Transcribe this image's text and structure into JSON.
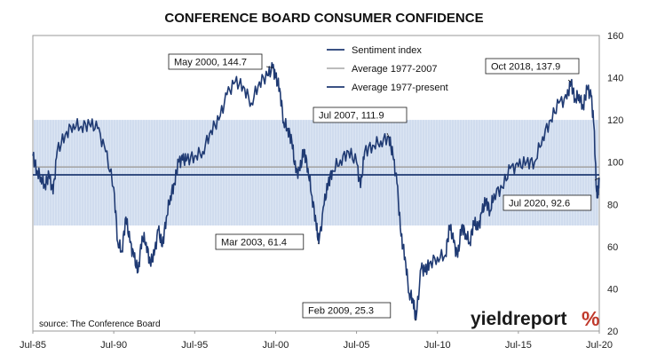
{
  "chart_data": {
    "type": "line",
    "title": "CONFERENCE BOARD CONSUMER CONFIDENCE",
    "source": "source: The Conference Board",
    "logo": {
      "text": "yieldreport",
      "symbol": "%"
    },
    "x_ticks": [
      "Jul-85",
      "Jul-90",
      "Jul-95",
      "Jul-00",
      "Jul-05",
      "Jul-10",
      "Jul-15",
      "Jul-20"
    ],
    "y_ticks": [
      20,
      40,
      60,
      80,
      100,
      120,
      140,
      160
    ],
    "xlim": [
      1985.5,
      2020.5
    ],
    "ylim": [
      20,
      160
    ],
    "grid": false,
    "legend_position": "top-center",
    "shaded_band": [
      70,
      120
    ],
    "colors": {
      "sentiment": "#1f3a73",
      "avg_1977_2007": "#a6a6a6",
      "avg_1977_present": "#1f3a73",
      "band": "#dbe5f3"
    },
    "series": [
      {
        "name": "Sentiment index",
        "x": [
          1985.5,
          1985.75,
          1986.0,
          1986.25,
          1986.5,
          1986.75,
          1987.0,
          1987.5,
          1988.0,
          1988.5,
          1989.0,
          1989.5,
          1990.0,
          1990.5,
          1990.75,
          1991.0,
          1991.25,
          1991.5,
          1991.75,
          1992.0,
          1992.25,
          1992.5,
          1992.75,
          1993.0,
          1993.25,
          1993.5,
          1993.75,
          1994.0,
          1994.25,
          1994.5,
          1994.75,
          1995.0,
          1995.5,
          1996.0,
          1996.5,
          1997.0,
          1997.5,
          1998.0,
          1998.5,
          1999.0,
          1999.5,
          2000.0,
          2000.33,
          2000.5,
          2000.75,
          2001.0,
          2001.25,
          2001.5,
          2001.75,
          2002.0,
          2002.25,
          2002.5,
          2002.75,
          2003.0,
          2003.17,
          2003.5,
          2003.75,
          2004.0,
          2004.5,
          2005.0,
          2005.5,
          2005.75,
          2006.0,
          2006.5,
          2007.0,
          2007.5,
          2007.75,
          2008.0,
          2008.25,
          2008.5,
          2008.75,
          2009.0,
          2009.17,
          2009.5,
          2009.75,
          2010.0,
          2010.5,
          2011.0,
          2011.25,
          2011.5,
          2011.75,
          2012.0,
          2012.25,
          2012.5,
          2012.75,
          2013.0,
          2013.25,
          2013.5,
          2013.75,
          2014.0,
          2014.5,
          2015.0,
          2015.5,
          2016.0,
          2016.5,
          2017.0,
          2017.5,
          2018.0,
          2018.5,
          2018.75,
          2019.0,
          2019.25,
          2019.5,
          2019.75,
          2020.0,
          2020.17,
          2020.33,
          2020.42,
          2020.5
        ],
        "values": [
          103,
          96,
          93,
          89,
          94,
          85,
          105,
          113,
          118,
          117,
          118,
          116,
          105,
          88,
          62,
          58,
          74,
          62,
          55,
          48,
          65,
          62,
          52,
          56,
          68,
          60,
          74,
          84,
          90,
          100,
          101,
          101,
          103,
          105,
          115,
          120,
          132,
          138,
          136,
          128,
          138,
          141,
          144.7,
          140,
          135,
          119,
          116,
          110,
          95,
          96,
          106,
          97,
          84,
          71,
          61.4,
          80,
          90,
          96,
          101,
          105,
          100,
          88,
          105,
          108,
          110,
          111.9,
          103,
          90,
          65,
          55,
          38,
          35,
          25.3,
          50,
          48,
          52,
          55,
          56,
          70,
          62,
          55,
          70,
          66,
          62,
          72,
          68,
          76,
          82,
          77,
          85,
          88,
          97,
          98,
          100,
          100,
          112,
          120,
          128,
          130,
          137.9,
          130,
          132,
          126,
          135,
          131,
          117,
          86,
          86,
          92.6
        ]
      },
      {
        "name": "Average 1977-2007",
        "value": 97.7
      },
      {
        "name": "Average 1977-present",
        "value": 94
      }
    ],
    "annotations": [
      {
        "label": "May 2000, 144.7",
        "x": 2000.33,
        "y": 144.7
      },
      {
        "label": "Jul 2007, 111.9",
        "x": 2007.5,
        "y": 111.9
      },
      {
        "label": "Mar 2003, 61.4",
        "x": 2003.17,
        "y": 61.4
      },
      {
        "label": "Feb 2009, 25.3",
        "x": 2009.17,
        "y": 25.3
      },
      {
        "label": "Oct 2018, 137.9",
        "x": 2018.75,
        "y": 137.9
      },
      {
        "label": "Jul 2020, 92.6",
        "x": 2020.5,
        "y": 92.6
      }
    ]
  }
}
